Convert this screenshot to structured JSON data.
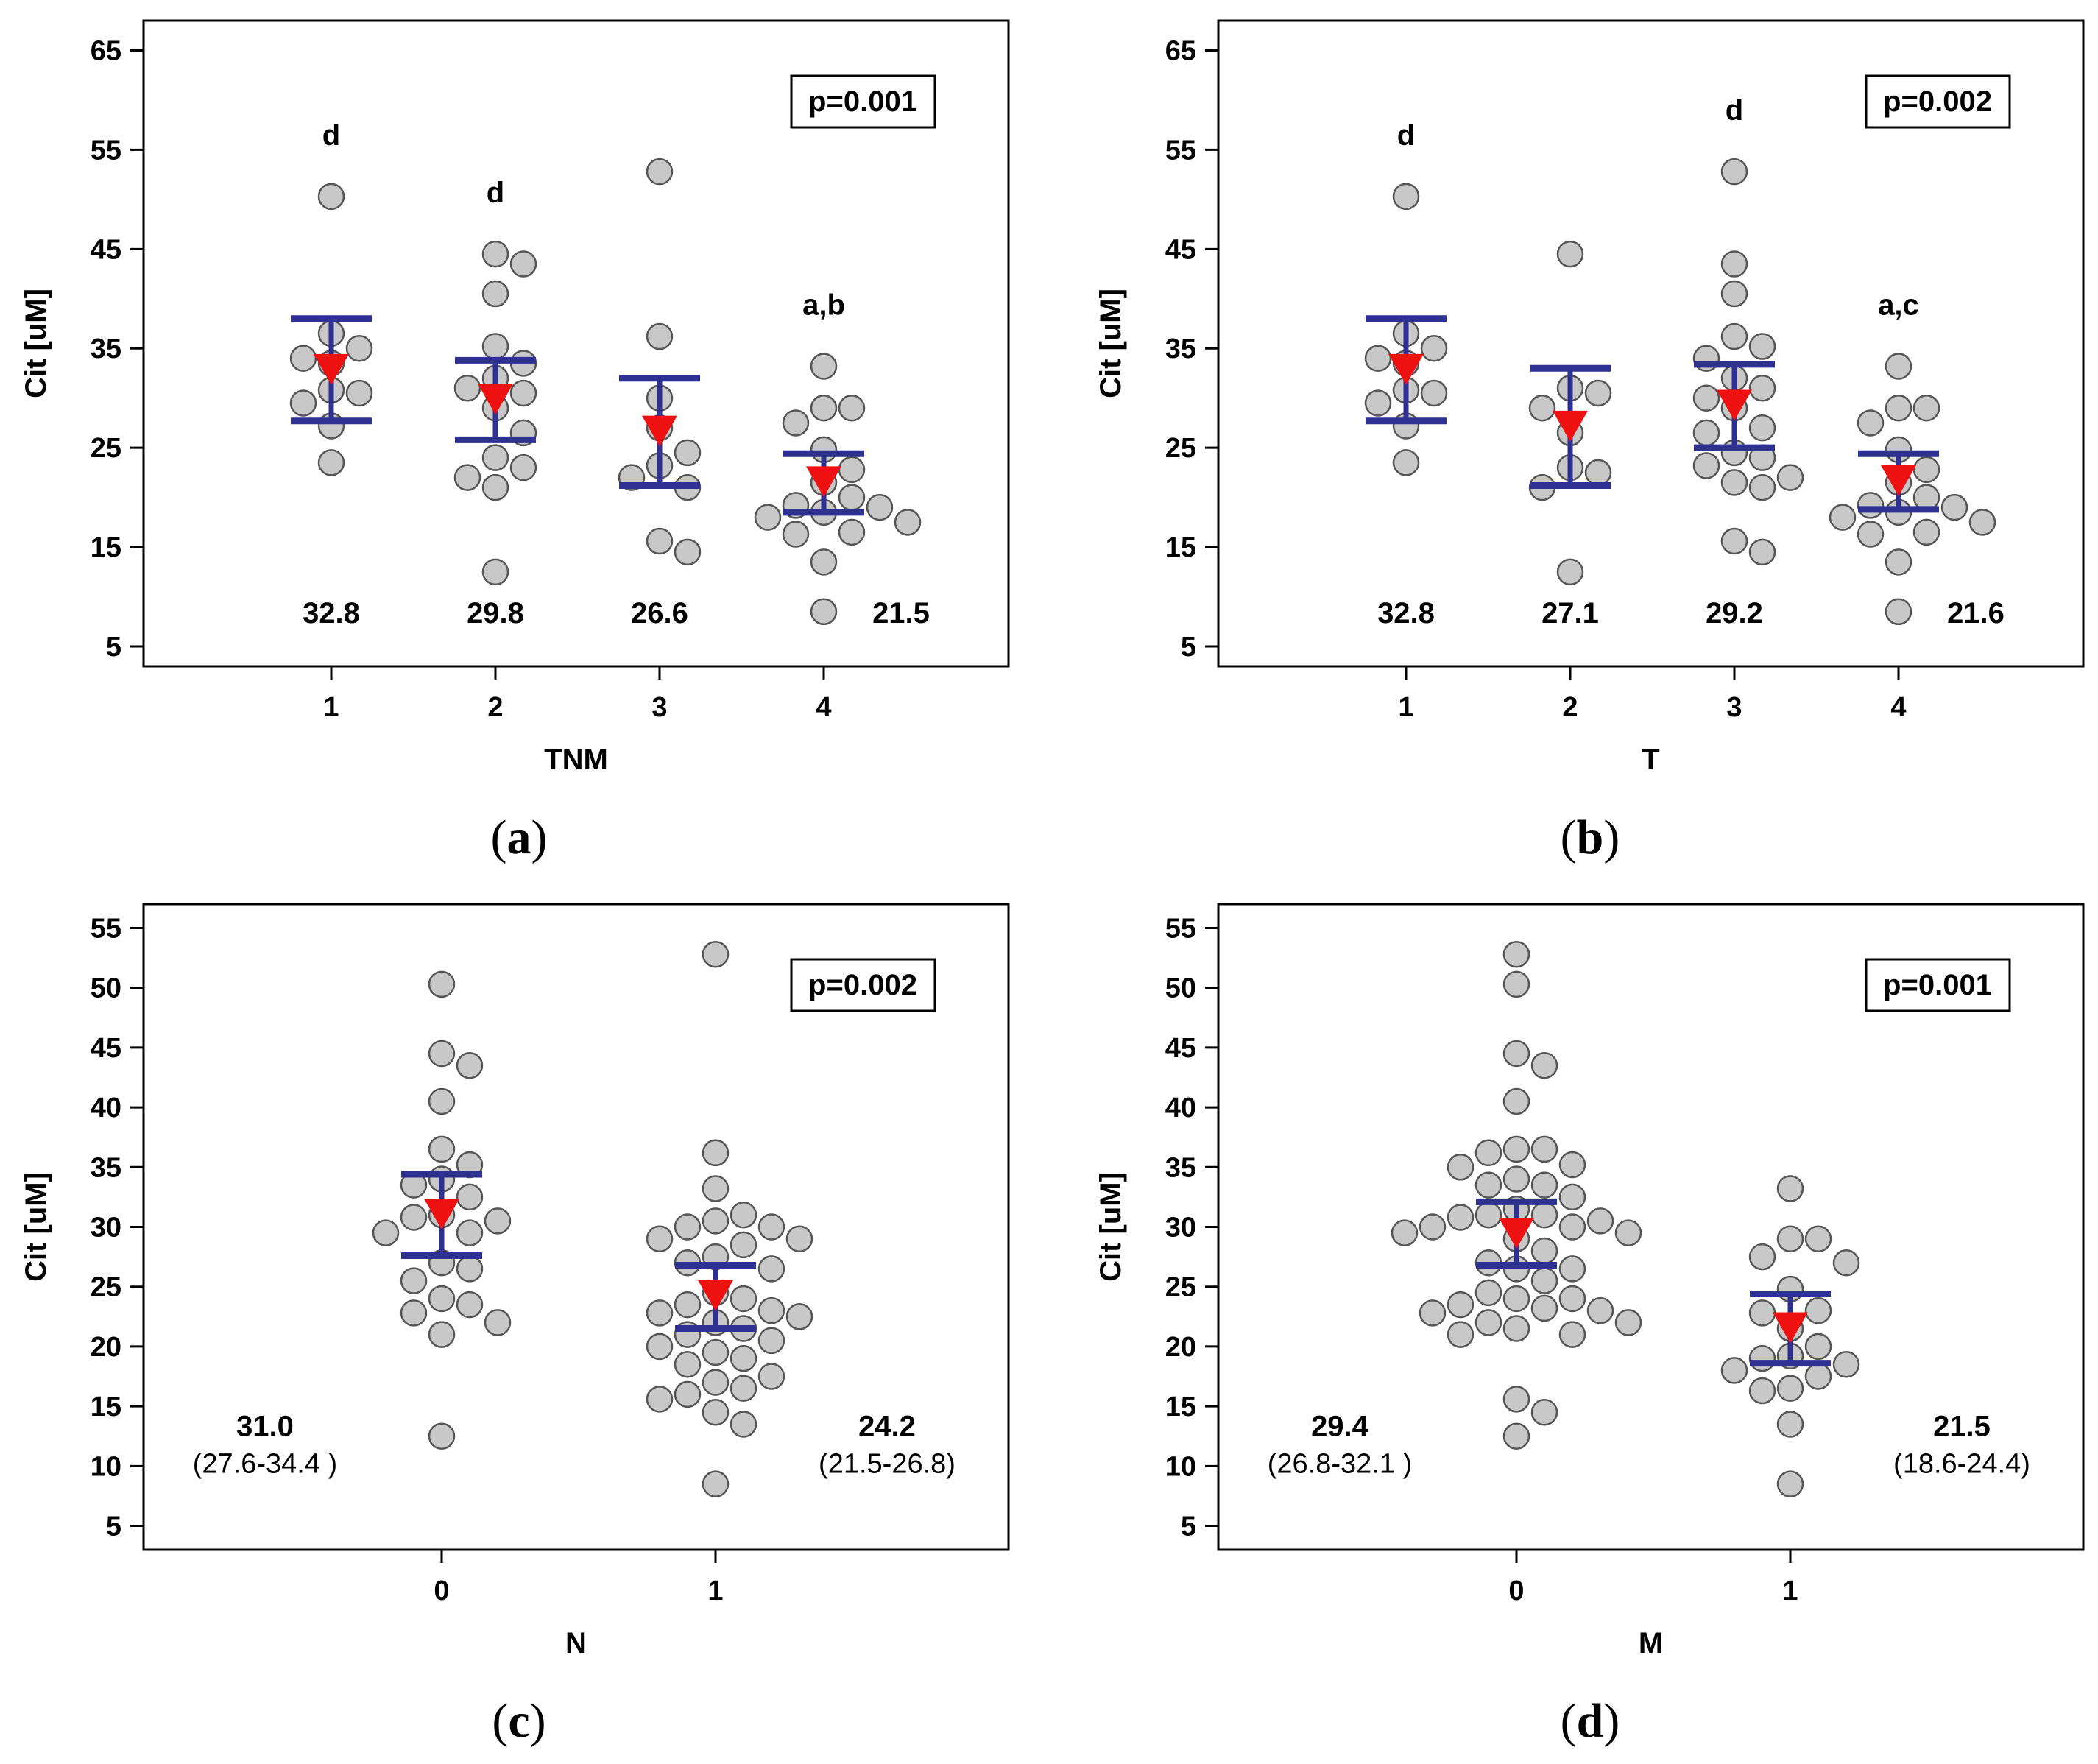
{
  "figure": {
    "panels": [
      {
        "label": "a"
      },
      {
        "label": "b"
      },
      {
        "label": "c"
      },
      {
        "label": "d"
      }
    ]
  },
  "chart_data": [
    {
      "type": "scatter",
      "panel": "a",
      "xlabel": "TNM",
      "ylabel": "Cit [uM]",
      "categories": [
        "1",
        "2",
        "3",
        "4"
      ],
      "ylim": [
        3,
        68
      ],
      "yticks": [
        5,
        15,
        25,
        35,
        45,
        55,
        65
      ],
      "pvalue": "p=0.001",
      "pvalue_position": "top-right",
      "mean_marker_color": "#ee1111",
      "ci_color": "#2e3192",
      "point_color": "#c8c8c8",
      "groups": [
        {
          "x": "1",
          "points": [
            50.3,
            36.5,
            35.0,
            34.0,
            33.5,
            30.8,
            30.5,
            29.5,
            27.2,
            23.5
          ],
          "mean": 32.8,
          "ci": [
            27.7,
            38.0
          ],
          "mean_label": "32.8",
          "letters": "d"
        },
        {
          "x": "2",
          "points": [
            44.5,
            43.5,
            40.5,
            35.2,
            33.5,
            32.0,
            31.0,
            30.5,
            29.0,
            26.5,
            24.0,
            23.0,
            22.0,
            21.0,
            12.5
          ],
          "mean": 29.8,
          "ci": [
            25.8,
            33.8
          ],
          "mean_label": "29.8",
          "letters": "d"
        },
        {
          "x": "3",
          "points": [
            52.8,
            36.2,
            30.0,
            27.0,
            24.5,
            23.2,
            22.0,
            21.0,
            15.6,
            14.5
          ],
          "mean": 26.6,
          "ci": [
            21.2,
            32.0
          ],
          "mean_label": "26.6",
          "letters": ""
        },
        {
          "x": "4",
          "points": [
            33.2,
            29.0,
            29.0,
            27.5,
            24.8,
            22.8,
            21.5,
            20.0,
            19.2,
            19.0,
            18.5,
            18.0,
            17.5,
            16.5,
            16.3,
            13.5,
            8.5
          ],
          "mean": 21.5,
          "ci": [
            18.5,
            24.4
          ],
          "mean_label": "21.5",
          "letters": "a,b"
        }
      ]
    },
    {
      "type": "scatter",
      "panel": "b",
      "xlabel": "T",
      "ylabel": "Cit [uM]",
      "categories": [
        "1",
        "2",
        "3",
        "4"
      ],
      "ylim": [
        3,
        68
      ],
      "yticks": [
        5,
        15,
        25,
        35,
        45,
        55,
        65
      ],
      "pvalue": "p=0.002",
      "pvalue_position": "top-right",
      "mean_marker_color": "#ee1111",
      "ci_color": "#2e3192",
      "point_color": "#c8c8c8",
      "groups": [
        {
          "x": "1",
          "points": [
            50.3,
            36.5,
            35.0,
            34.0,
            33.5,
            30.8,
            30.5,
            29.5,
            27.2,
            23.5
          ],
          "mean": 32.8,
          "ci": [
            27.7,
            38.0
          ],
          "mean_label": "32.8",
          "letters": "d"
        },
        {
          "x": "2",
          "points": [
            44.5,
            31.0,
            30.5,
            29.0,
            26.5,
            23.0,
            22.5,
            21.0,
            12.5
          ],
          "mean": 27.1,
          "ci": [
            21.2,
            33.0
          ],
          "mean_label": "27.1",
          "letters": ""
        },
        {
          "x": "3",
          "points": [
            52.8,
            43.5,
            40.5,
            36.2,
            35.2,
            34.0,
            32.0,
            31.0,
            30.0,
            29.0,
            27.0,
            26.5,
            24.5,
            24.0,
            23.2,
            22.0,
            21.5,
            21.0,
            15.6,
            14.5
          ],
          "mean": 29.2,
          "ci": [
            25.0,
            33.4
          ],
          "mean_label": "29.2",
          "letters": "d"
        },
        {
          "x": "4",
          "points": [
            33.2,
            29.0,
            29.0,
            27.5,
            24.8,
            22.8,
            21.5,
            20.0,
            19.2,
            19.0,
            18.5,
            18.0,
            17.5,
            16.5,
            16.3,
            13.5,
            8.5
          ],
          "mean": 21.6,
          "ci": [
            18.8,
            24.4
          ],
          "mean_label": "21.6",
          "letters": "a,c"
        }
      ]
    },
    {
      "type": "scatter",
      "panel": "c",
      "xlabel": "N",
      "ylabel": "Cit [uM]",
      "categories": [
        "0",
        "1"
      ],
      "ylim": [
        3,
        57
      ],
      "yticks": [
        5,
        10,
        15,
        20,
        25,
        30,
        35,
        40,
        45,
        50,
        55
      ],
      "pvalue": "p=0.002",
      "pvalue_position": "top-right",
      "mean_marker_color": "#ee1111",
      "ci_color": "#2e3192",
      "point_color": "#c8c8c8",
      "groups": [
        {
          "x": "0",
          "points": [
            50.3,
            44.5,
            43.5,
            40.5,
            36.5,
            35.2,
            34.0,
            33.5,
            32.5,
            31.0,
            30.8,
            30.5,
            29.5,
            29.5,
            27.0,
            26.5,
            25.5,
            24.0,
            23.5,
            22.8,
            22.0,
            21.0,
            12.5
          ],
          "mean": 31.0,
          "ci": [
            27.6,
            34.4
          ],
          "mean_label": "31.0",
          "ci_label": "(27.6-34.4 )"
        },
        {
          "x": "1",
          "points": [
            52.8,
            36.2,
            33.2,
            31.0,
            30.5,
            30.0,
            30.0,
            29.0,
            29.0,
            28.5,
            27.5,
            27.0,
            26.5,
            24.5,
            24.0,
            23.5,
            23.0,
            22.8,
            22.5,
            22.0,
            21.5,
            21.0,
            20.5,
            20.0,
            19.5,
            19.0,
            18.5,
            17.5,
            17.0,
            16.5,
            16.0,
            15.6,
            14.5,
            13.5,
            8.5
          ],
          "mean": 24.2,
          "ci": [
            21.5,
            26.8
          ],
          "mean_label": "24.2",
          "ci_label": "(21.5-26.8)"
        }
      ]
    },
    {
      "type": "scatter",
      "panel": "d",
      "xlabel": "M",
      "ylabel": "Cit [uM]",
      "categories": [
        "0",
        "1"
      ],
      "ylim": [
        3,
        57
      ],
      "yticks": [
        5,
        10,
        15,
        20,
        25,
        30,
        35,
        40,
        45,
        50,
        55
      ],
      "pvalue": "p=0.001",
      "pvalue_position": "top-right",
      "mean_marker_color": "#ee1111",
      "ci_color": "#2e3192",
      "point_color": "#c8c8c8",
      "groups": [
        {
          "x": "0",
          "points": [
            52.8,
            50.3,
            44.5,
            43.5,
            40.5,
            36.5,
            36.5,
            36.2,
            35.2,
            35.0,
            34.0,
            33.5,
            33.5,
            32.5,
            31.5,
            31.0,
            31.0,
            30.8,
            30.5,
            30.0,
            30.0,
            29.5,
            29.5,
            29.0,
            28.0,
            27.0,
            26.5,
            26.5,
            25.5,
            24.5,
            24.0,
            24.0,
            23.5,
            23.2,
            23.0,
            22.8,
            22.0,
            22.0,
            21.5,
            21.0,
            21.0,
            15.6,
            14.5,
            12.5
          ],
          "mean": 29.4,
          "ci": [
            26.8,
            32.1
          ],
          "mean_label": "29.4",
          "ci_label": "(26.8-32.1 )"
        },
        {
          "x": "1",
          "points": [
            33.2,
            29.0,
            29.0,
            27.5,
            27.0,
            24.8,
            23.0,
            22.8,
            21.5,
            20.0,
            19.2,
            19.0,
            18.5,
            18.0,
            17.5,
            16.5,
            16.3,
            13.5,
            8.5
          ],
          "mean": 21.5,
          "ci": [
            18.6,
            24.4
          ],
          "mean_label": "21.5",
          "ci_label": "(18.6-24.4)"
        }
      ]
    }
  ]
}
